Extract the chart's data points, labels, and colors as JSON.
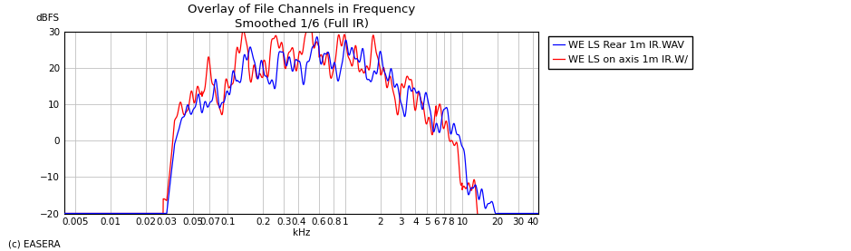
{
  "title_line1": "Overlay of File Channels in Frequency",
  "title_line2": "Smoothed 1/6 (Full IR)",
  "ylabel": "dBFS",
  "xlabel": "kHz",
  "footnote": "(c) EASERA",
  "ylim": [
    -20,
    30
  ],
  "yticks": [
    -20,
    -10,
    0,
    10,
    20,
    30
  ],
  "xmin": 0.004,
  "xmax": 45,
  "legend_blue": "WE LS Rear 1m IR.WAV",
  "legend_red": "WE LS on axis 1m IR.W/",
  "color_blue": "#0000FF",
  "color_red": "#FF0000",
  "background_color": "#FFFFFF",
  "grid_color": "#C0C0C0",
  "title_fontsize": 9.5,
  "tick_fontsize": 7.5,
  "legend_fontsize": 8
}
